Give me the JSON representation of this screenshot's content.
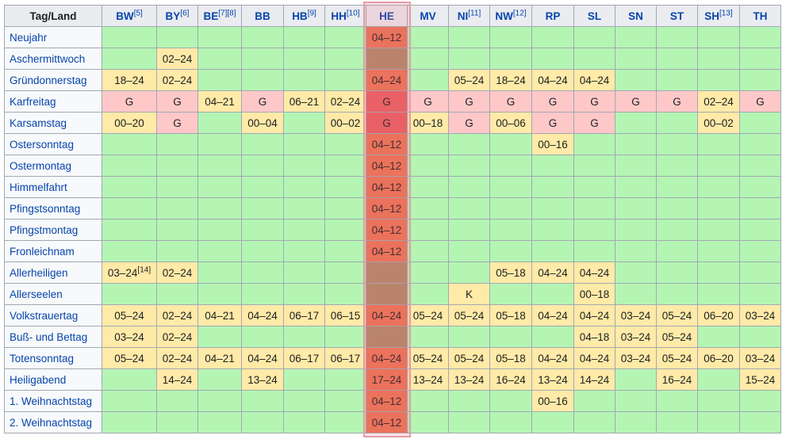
{
  "header": {
    "corner": "Tag/Land",
    "columns": [
      {
        "abbr": "BW",
        "note": "[5]"
      },
      {
        "abbr": "BY",
        "note": "[6]"
      },
      {
        "abbr": "BE",
        "note": "[7][8]"
      },
      {
        "abbr": "BB",
        "note": ""
      },
      {
        "abbr": "HB",
        "note": "[9]"
      },
      {
        "abbr": "HH",
        "note": "[10]"
      },
      {
        "abbr": "HE",
        "note": ""
      },
      {
        "abbr": "MV",
        "note": ""
      },
      {
        "abbr": "NI",
        "note": "[11]"
      },
      {
        "abbr": "NW",
        "note": "[12]"
      },
      {
        "abbr": "RP",
        "note": ""
      },
      {
        "abbr": "SL",
        "note": ""
      },
      {
        "abbr": "SN",
        "note": ""
      },
      {
        "abbr": "ST",
        "note": ""
      },
      {
        "abbr": "SH",
        "note": "[13]"
      },
      {
        "abbr": "TH",
        "note": ""
      }
    ]
  },
  "colors": {
    "green": "#b4f5b4",
    "yellow": "#ffeaa8",
    "red": "#ffc8c8",
    "he_orange": "#ec7355",
    "he_brown": "#b08968",
    "he_pink": "#ea5f62",
    "highlight_border": "#e89aa8"
  },
  "rows": [
    {
      "day": "Neujahr",
      "cells": [
        [
          "",
          "g"
        ],
        [
          "",
          "g"
        ],
        [
          "",
          "g"
        ],
        [
          "",
          "g"
        ],
        [
          "",
          "g"
        ],
        [
          "",
          "g"
        ],
        [
          "04–12",
          "he"
        ],
        [
          "",
          "g"
        ],
        [
          "",
          "g"
        ],
        [
          "",
          "g"
        ],
        [
          "",
          "g"
        ],
        [
          "",
          "g"
        ],
        [
          "",
          "g"
        ],
        [
          "",
          "g"
        ],
        [
          "",
          "g"
        ],
        [
          "",
          "g"
        ]
      ]
    },
    {
      "day": "Aschermittwoch",
      "cells": [
        [
          "",
          "g"
        ],
        [
          "02–24",
          "y"
        ],
        [
          "",
          "g"
        ],
        [
          "",
          "g"
        ],
        [
          "",
          "g"
        ],
        [
          "",
          "g"
        ],
        [
          "",
          "heb"
        ],
        [
          "",
          "g"
        ],
        [
          "",
          "g"
        ],
        [
          "",
          "g"
        ],
        [
          "",
          "g"
        ],
        [
          "",
          "g"
        ],
        [
          "",
          "g"
        ],
        [
          "",
          "g"
        ],
        [
          "",
          "g"
        ],
        [
          "",
          "g"
        ]
      ]
    },
    {
      "day": "Gründonnerstag",
      "cells": [
        [
          "18–24",
          "y"
        ],
        [
          "02–24",
          "y"
        ],
        [
          "",
          "g"
        ],
        [
          "",
          "g"
        ],
        [
          "",
          "g"
        ],
        [
          "",
          "g"
        ],
        [
          "04–24",
          "he"
        ],
        [
          "",
          "g"
        ],
        [
          "05–24",
          "y"
        ],
        [
          "18–24",
          "y"
        ],
        [
          "04–24",
          "y"
        ],
        [
          "04–24",
          "y"
        ],
        [
          "",
          "g"
        ],
        [
          "",
          "g"
        ],
        [
          "",
          "g"
        ],
        [
          "",
          "g"
        ]
      ]
    },
    {
      "day": "Karfreitag",
      "cells": [
        [
          "G",
          "r"
        ],
        [
          "G",
          "r"
        ],
        [
          "04–21",
          "y"
        ],
        [
          "G",
          "r"
        ],
        [
          "06–21",
          "y"
        ],
        [
          "02–24",
          "y"
        ],
        [
          "G",
          "hep"
        ],
        [
          "G",
          "r"
        ],
        [
          "G",
          "r"
        ],
        [
          "G",
          "r"
        ],
        [
          "G",
          "r"
        ],
        [
          "G",
          "r"
        ],
        [
          "G",
          "r"
        ],
        [
          "G",
          "r"
        ],
        [
          "02–24",
          "y"
        ],
        [
          "G",
          "r"
        ]
      ]
    },
    {
      "day": "Karsamstag",
      "cells": [
        [
          "00–20",
          "y"
        ],
        [
          "G",
          "r"
        ],
        [
          "",
          "g"
        ],
        [
          "00–04",
          "y"
        ],
        [
          "",
          "g"
        ],
        [
          "00–02",
          "y"
        ],
        [
          "G",
          "hep"
        ],
        [
          "00–18",
          "y"
        ],
        [
          "G",
          "r"
        ],
        [
          "00–06",
          "y"
        ],
        [
          "G",
          "r"
        ],
        [
          "G",
          "r"
        ],
        [
          "",
          "g"
        ],
        [
          "",
          "g"
        ],
        [
          "00–02",
          "y"
        ],
        [
          "",
          "g"
        ]
      ]
    },
    {
      "day": "Ostersonntag",
      "cells": [
        [
          "",
          "g"
        ],
        [
          "",
          "g"
        ],
        [
          "",
          "g"
        ],
        [
          "",
          "g"
        ],
        [
          "",
          "g"
        ],
        [
          "",
          "g"
        ],
        [
          "04–12",
          "he"
        ],
        [
          "",
          "g"
        ],
        [
          "",
          "g"
        ],
        [
          "",
          "g"
        ],
        [
          "00–16",
          "y"
        ],
        [
          "",
          "g"
        ],
        [
          "",
          "g"
        ],
        [
          "",
          "g"
        ],
        [
          "",
          "g"
        ],
        [
          "",
          "g"
        ]
      ]
    },
    {
      "day": "Ostermontag",
      "cells": [
        [
          "",
          "g"
        ],
        [
          "",
          "g"
        ],
        [
          "",
          "g"
        ],
        [
          "",
          "g"
        ],
        [
          "",
          "g"
        ],
        [
          "",
          "g"
        ],
        [
          "04–12",
          "he"
        ],
        [
          "",
          "g"
        ],
        [
          "",
          "g"
        ],
        [
          "",
          "g"
        ],
        [
          "",
          "g"
        ],
        [
          "",
          "g"
        ],
        [
          "",
          "g"
        ],
        [
          "",
          "g"
        ],
        [
          "",
          "g"
        ],
        [
          "",
          "g"
        ]
      ]
    },
    {
      "day": "Himmelfahrt",
      "cells": [
        [
          "",
          "g"
        ],
        [
          "",
          "g"
        ],
        [
          "",
          "g"
        ],
        [
          "",
          "g"
        ],
        [
          "",
          "g"
        ],
        [
          "",
          "g"
        ],
        [
          "04–12",
          "he"
        ],
        [
          "",
          "g"
        ],
        [
          "",
          "g"
        ],
        [
          "",
          "g"
        ],
        [
          "",
          "g"
        ],
        [
          "",
          "g"
        ],
        [
          "",
          "g"
        ],
        [
          "",
          "g"
        ],
        [
          "",
          "g"
        ],
        [
          "",
          "g"
        ]
      ]
    },
    {
      "day": "Pfingstsonntag",
      "cells": [
        [
          "",
          "g"
        ],
        [
          "",
          "g"
        ],
        [
          "",
          "g"
        ],
        [
          "",
          "g"
        ],
        [
          "",
          "g"
        ],
        [
          "",
          "g"
        ],
        [
          "04–12",
          "he"
        ],
        [
          "",
          "g"
        ],
        [
          "",
          "g"
        ],
        [
          "",
          "g"
        ],
        [
          "",
          "g"
        ],
        [
          "",
          "g"
        ],
        [
          "",
          "g"
        ],
        [
          "",
          "g"
        ],
        [
          "",
          "g"
        ],
        [
          "",
          "g"
        ]
      ]
    },
    {
      "day": "Pfingstmontag",
      "cells": [
        [
          "",
          "g"
        ],
        [
          "",
          "g"
        ],
        [
          "",
          "g"
        ],
        [
          "",
          "g"
        ],
        [
          "",
          "g"
        ],
        [
          "",
          "g"
        ],
        [
          "04–12",
          "he"
        ],
        [
          "",
          "g"
        ],
        [
          "",
          "g"
        ],
        [
          "",
          "g"
        ],
        [
          "",
          "g"
        ],
        [
          "",
          "g"
        ],
        [
          "",
          "g"
        ],
        [
          "",
          "g"
        ],
        [
          "",
          "g"
        ],
        [
          "",
          "g"
        ]
      ]
    },
    {
      "day": "Fronleichnam",
      "cells": [
        [
          "",
          "g"
        ],
        [
          "",
          "g"
        ],
        [
          "",
          "g"
        ],
        [
          "",
          "g"
        ],
        [
          "",
          "g"
        ],
        [
          "",
          "g"
        ],
        [
          "04–12",
          "he"
        ],
        [
          "",
          "g"
        ],
        [
          "",
          "g"
        ],
        [
          "",
          "g"
        ],
        [
          "",
          "g"
        ],
        [
          "",
          "g"
        ],
        [
          "",
          "g"
        ],
        [
          "",
          "g"
        ],
        [
          "",
          "g"
        ],
        [
          "",
          "g"
        ]
      ]
    },
    {
      "day": "Allerheiligen",
      "cells": [
        [
          "03–24",
          "y",
          "[14]"
        ],
        [
          "02–24",
          "y"
        ],
        [
          "",
          "g"
        ],
        [
          "",
          "g"
        ],
        [
          "",
          "g"
        ],
        [
          "",
          "g"
        ],
        [
          "",
          "heb"
        ],
        [
          "",
          "g"
        ],
        [
          "",
          "g"
        ],
        [
          "05–18",
          "y"
        ],
        [
          "04–24",
          "y"
        ],
        [
          "04–24",
          "y"
        ],
        [
          "",
          "g"
        ],
        [
          "",
          "g"
        ],
        [
          "",
          "g"
        ],
        [
          "",
          "g"
        ]
      ]
    },
    {
      "day": "Allerseelen",
      "cells": [
        [
          "",
          "g"
        ],
        [
          "",
          "g"
        ],
        [
          "",
          "g"
        ],
        [
          "",
          "g"
        ],
        [
          "",
          "g"
        ],
        [
          "",
          "g"
        ],
        [
          "",
          "heb"
        ],
        [
          "",
          "g"
        ],
        [
          "K",
          "y"
        ],
        [
          "",
          "g"
        ],
        [
          "",
          "g"
        ],
        [
          "00–18",
          "y"
        ],
        [
          "",
          "g"
        ],
        [
          "",
          "g"
        ],
        [
          "",
          "g"
        ],
        [
          "",
          "g"
        ]
      ]
    },
    {
      "day": "Volkstrauertag",
      "cells": [
        [
          "05–24",
          "y"
        ],
        [
          "02–24",
          "y"
        ],
        [
          "04–21",
          "y"
        ],
        [
          "04–24",
          "y"
        ],
        [
          "06–17",
          "y"
        ],
        [
          "06–15",
          "y"
        ],
        [
          "04–24",
          "he"
        ],
        [
          "05–24",
          "y"
        ],
        [
          "05–24",
          "y"
        ],
        [
          "05–18",
          "y"
        ],
        [
          "04–24",
          "y"
        ],
        [
          "04–24",
          "y"
        ],
        [
          "03–24",
          "y"
        ],
        [
          "05–24",
          "y"
        ],
        [
          "06–20",
          "y"
        ],
        [
          "03–24",
          "y"
        ]
      ]
    },
    {
      "day": "Buß- und Bettag",
      "cells": [
        [
          "03–24",
          "y"
        ],
        [
          "02–24",
          "y"
        ],
        [
          "",
          "g"
        ],
        [
          "",
          "g"
        ],
        [
          "",
          "g"
        ],
        [
          "",
          "g"
        ],
        [
          "",
          "heb"
        ],
        [
          "",
          "g"
        ],
        [
          "",
          "g"
        ],
        [
          "",
          "g"
        ],
        [
          "",
          "g"
        ],
        [
          "04–18",
          "y"
        ],
        [
          "03–24",
          "y"
        ],
        [
          "05–24",
          "y"
        ],
        [
          "",
          "g"
        ],
        [
          "",
          "g"
        ]
      ]
    },
    {
      "day": "Totensonntag",
      "cells": [
        [
          "05–24",
          "y"
        ],
        [
          "02–24",
          "y"
        ],
        [
          "04–21",
          "y"
        ],
        [
          "04–24",
          "y"
        ],
        [
          "06–17",
          "y"
        ],
        [
          "06–17",
          "y"
        ],
        [
          "04–24",
          "he"
        ],
        [
          "05–24",
          "y"
        ],
        [
          "05–24",
          "y"
        ],
        [
          "05–18",
          "y"
        ],
        [
          "04–24",
          "y"
        ],
        [
          "04–24",
          "y"
        ],
        [
          "03–24",
          "y"
        ],
        [
          "05–24",
          "y"
        ],
        [
          "06–20",
          "y"
        ],
        [
          "03–24",
          "y"
        ]
      ]
    },
    {
      "day": "Heiligabend",
      "cells": [
        [
          "",
          "g"
        ],
        [
          "14–24",
          "y"
        ],
        [
          "",
          "g"
        ],
        [
          "13–24",
          "y"
        ],
        [
          "",
          "g"
        ],
        [
          "",
          "g"
        ],
        [
          "17–24",
          "he"
        ],
        [
          "13–24",
          "y"
        ],
        [
          "13–24",
          "y"
        ],
        [
          "16–24",
          "y"
        ],
        [
          "13–24",
          "y"
        ],
        [
          "14–24",
          "y"
        ],
        [
          "",
          "g"
        ],
        [
          "16–24",
          "y"
        ],
        [
          "",
          "g"
        ],
        [
          "15–24",
          "y"
        ]
      ]
    },
    {
      "day": "1. Weihnachtstag",
      "cells": [
        [
          "",
          "g"
        ],
        [
          "",
          "g"
        ],
        [
          "",
          "g"
        ],
        [
          "",
          "g"
        ],
        [
          "",
          "g"
        ],
        [
          "",
          "g"
        ],
        [
          "04–12",
          "he"
        ],
        [
          "",
          "g"
        ],
        [
          "",
          "g"
        ],
        [
          "",
          "g"
        ],
        [
          "00–16",
          "y"
        ],
        [
          "",
          "g"
        ],
        [
          "",
          "g"
        ],
        [
          "",
          "g"
        ],
        [
          "",
          "g"
        ],
        [
          "",
          "g"
        ]
      ]
    },
    {
      "day": "2. Weihnachtstag",
      "cells": [
        [
          "",
          "g"
        ],
        [
          "",
          "g"
        ],
        [
          "",
          "g"
        ],
        [
          "",
          "g"
        ],
        [
          "",
          "g"
        ],
        [
          "",
          "g"
        ],
        [
          "04–12",
          "he"
        ],
        [
          "",
          "g"
        ],
        [
          "",
          "g"
        ],
        [
          "",
          "g"
        ],
        [
          "",
          "g"
        ],
        [
          "",
          "g"
        ],
        [
          "",
          "g"
        ],
        [
          "",
          "g"
        ],
        [
          "",
          "g"
        ],
        [
          "",
          "g"
        ]
      ]
    }
  ]
}
